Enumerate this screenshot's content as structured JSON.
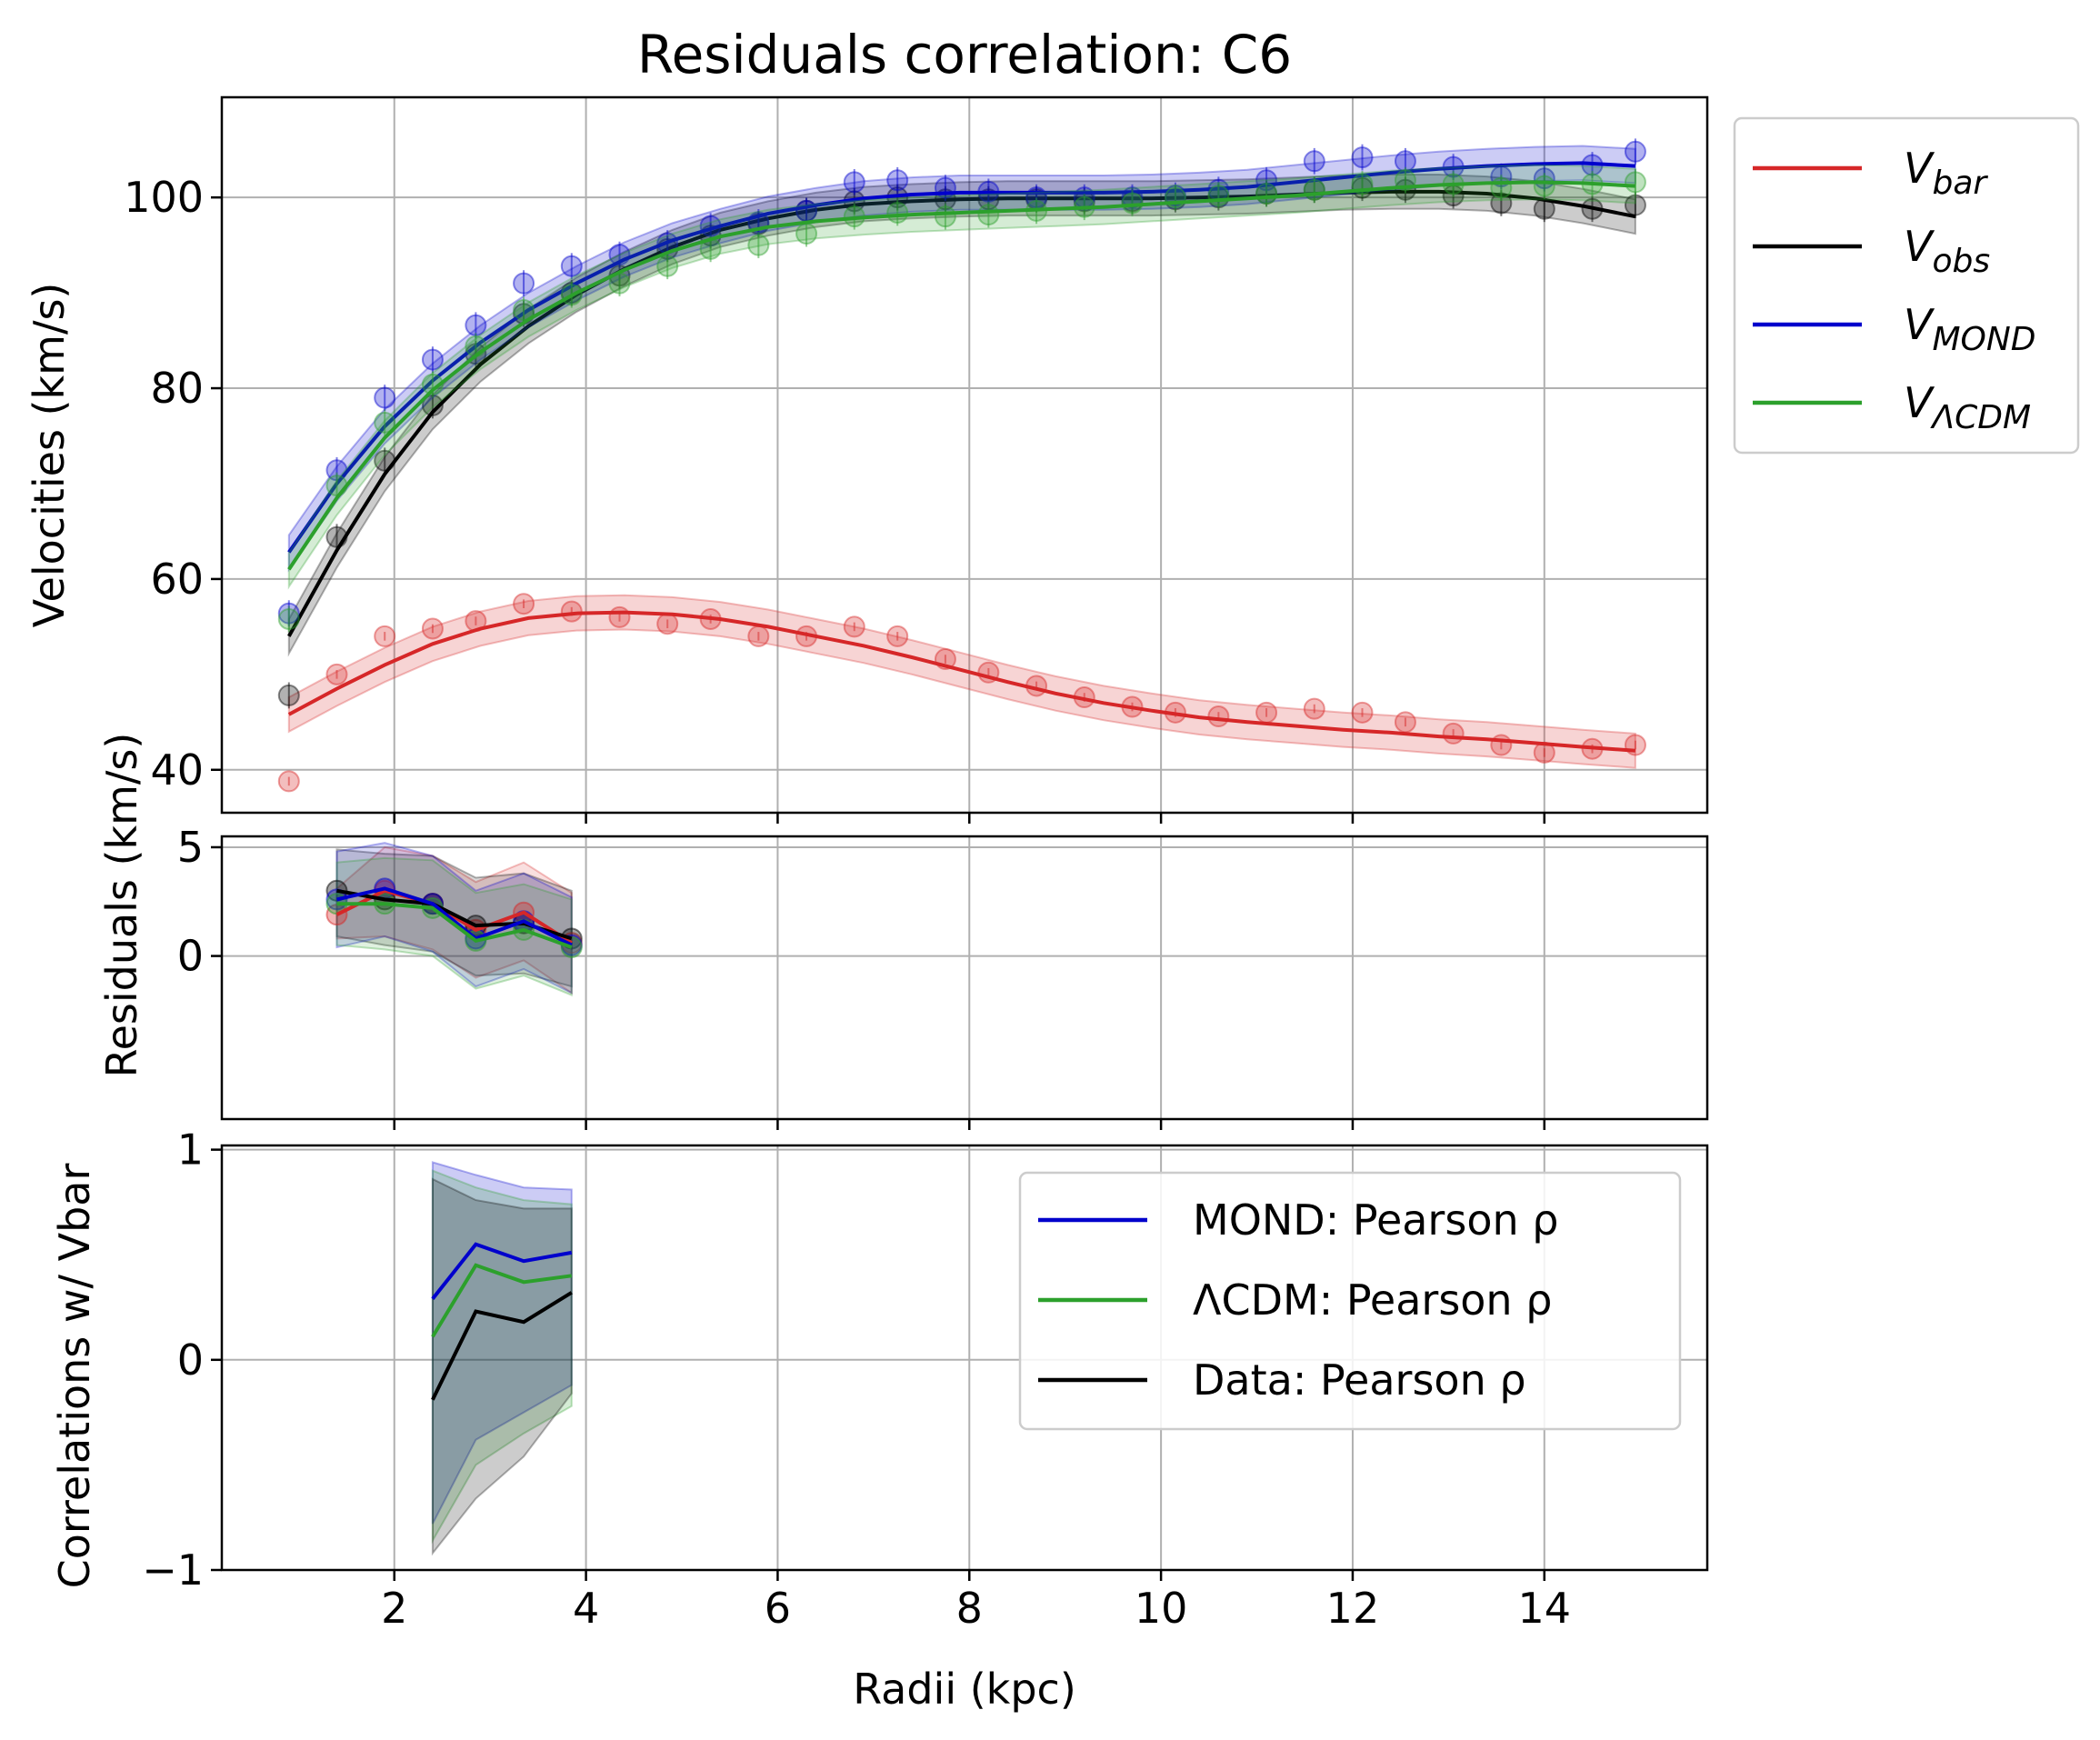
{
  "chart_data": [
    {
      "type": "line",
      "title": "Residuals correlation: C6",
      "ylabel": "Velocities (km/s)",
      "xlim": [
        0.2,
        15.7
      ],
      "ylim": [
        35.5,
        110.5
      ],
      "x_ticks": [
        2,
        4,
        6,
        8,
        10,
        12,
        14
      ],
      "y_ticks": [
        40,
        60,
        80,
        100
      ],
      "grid": true,
      "legend_position": "outside-right",
      "legend": [
        "V_bar",
        "V_obs",
        "V_MOND",
        "V_ΛCDM"
      ],
      "series": [
        {
          "name": "V_bar",
          "color": "#d62728",
          "points_x": [
            0.9,
            1.4,
            1.9,
            2.4,
            2.85,
            3.35,
            3.85,
            4.35,
            4.85,
            5.3,
            5.8,
            6.3,
            6.8,
            7.25,
            7.75,
            8.2,
            8.7,
            9.2,
            9.7,
            10.15,
            10.6,
            11.1,
            11.6,
            12.1,
            12.55,
            13.05,
            13.55,
            14.0,
            14.5,
            14.95
          ],
          "points_y": [
            38.8,
            50.0,
            54.0,
            54.8,
            55.6,
            57.4,
            56.6,
            56.0,
            55.3,
            55.8,
            54.0,
            54.0,
            55.0,
            54.0,
            51.6,
            50.2,
            48.8,
            47.6,
            46.6,
            46.0,
            45.6,
            46.0,
            46.4,
            46.0,
            45.0,
            43.8,
            42.6,
            41.8,
            42.2,
            42.6
          ],
          "curve_x": [
            0.9,
            1.4,
            1.9,
            2.4,
            2.9,
            3.4,
            3.9,
            4.4,
            4.9,
            5.4,
            5.9,
            6.4,
            6.9,
            7.4,
            7.9,
            8.4,
            8.9,
            9.4,
            9.9,
            10.4,
            10.9,
            11.4,
            11.9,
            12.4,
            12.9,
            13.4,
            13.9,
            14.4,
            14.95
          ],
          "curve_y": [
            45.8,
            48.5,
            51.0,
            53.2,
            54.8,
            55.9,
            56.4,
            56.5,
            56.3,
            55.8,
            55.0,
            54.0,
            53.0,
            51.8,
            50.5,
            49.2,
            48.0,
            47.0,
            46.2,
            45.5,
            45.0,
            44.6,
            44.2,
            43.9,
            43.5,
            43.2,
            42.8,
            42.4,
            42.0
          ],
          "band": 1.8
        },
        {
          "name": "V_obs",
          "color": "#000000",
          "points_x": [
            0.9,
            1.4,
            1.9,
            2.4,
            2.85,
            3.35,
            3.85,
            4.35,
            4.85,
            5.3,
            5.8,
            6.3,
            6.8,
            7.25,
            7.75,
            8.2,
            8.7,
            9.2,
            9.7,
            10.15,
            10.6,
            11.1,
            11.6,
            12.1,
            12.55,
            13.05,
            13.55,
            14.0,
            14.5,
            14.95
          ],
          "points_y": [
            47.8,
            64.4,
            72.4,
            78.2,
            83.6,
            87.8,
            90.0,
            91.8,
            94.6,
            96.0,
            97.2,
            98.6,
            99.6,
            100.0,
            99.8,
            99.8,
            99.8,
            99.6,
            99.6,
            99.8,
            100.0,
            100.4,
            100.8,
            101.0,
            100.8,
            100.2,
            99.4,
            98.8,
            98.8,
            99.2
          ],
          "curve_x": [
            0.9,
            1.4,
            1.9,
            2.4,
            2.9,
            3.4,
            3.9,
            4.4,
            4.9,
            5.4,
            5.9,
            6.4,
            6.9,
            7.4,
            7.9,
            8.4,
            8.9,
            9.4,
            9.9,
            10.4,
            10.9,
            11.4,
            11.9,
            12.4,
            12.9,
            13.4,
            13.9,
            14.4,
            14.95
          ],
          "curve_y": [
            54.0,
            63.0,
            71.0,
            77.5,
            82.5,
            86.5,
            89.8,
            92.5,
            94.8,
            96.6,
            97.8,
            98.7,
            99.3,
            99.6,
            99.8,
            99.9,
            99.9,
            99.9,
            99.9,
            100.0,
            100.1,
            100.3,
            100.5,
            100.6,
            100.6,
            100.4,
            99.9,
            99.1,
            98.0
          ],
          "band": 1.8
        },
        {
          "name": "V_MOND",
          "color": "#0000cc",
          "points_x": [
            0.9,
            1.4,
            1.9,
            2.4,
            2.85,
            3.35,
            3.85,
            4.35,
            4.85,
            5.3,
            5.8,
            6.3,
            6.8,
            7.25,
            7.75,
            8.2,
            8.7,
            9.2,
            9.7,
            10.15,
            10.6,
            11.1,
            11.6,
            12.1,
            12.55,
            13.05,
            13.55,
            14.0,
            14.5,
            14.95
          ],
          "points_y": [
            56.4,
            71.4,
            79.0,
            83.0,
            86.6,
            91.0,
            92.8,
            94.0,
            95.2,
            97.0,
            97.4,
            98.6,
            101.6,
            101.8,
            101.0,
            100.6,
            100.0,
            100.0,
            100.0,
            100.2,
            100.8,
            101.8,
            103.8,
            104.2,
            103.8,
            103.2,
            102.2,
            102.0,
            103.4,
            104.8
          ],
          "curve_x": [
            0.9,
            1.4,
            1.9,
            2.4,
            2.9,
            3.4,
            3.9,
            4.4,
            4.9,
            5.4,
            5.9,
            6.4,
            6.9,
            7.4,
            7.9,
            8.4,
            8.9,
            9.4,
            9.9,
            10.4,
            10.9,
            11.4,
            11.9,
            12.4,
            12.9,
            13.4,
            13.9,
            14.4,
            14.95
          ],
          "curve_y": [
            62.8,
            70.0,
            76.0,
            80.8,
            84.8,
            88.2,
            91.0,
            93.5,
            95.5,
            97.0,
            98.3,
            99.2,
            99.9,
            100.3,
            100.5,
            100.5,
            100.5,
            100.5,
            100.6,
            100.8,
            101.1,
            101.6,
            102.1,
            102.6,
            103.0,
            103.3,
            103.5,
            103.6,
            103.3
          ],
          "band": 1.8
        },
        {
          "name": "V_ΛCDM",
          "color": "#2ca02c",
          "points_x": [
            0.9,
            1.4,
            1.9,
            2.4,
            2.85,
            3.35,
            3.85,
            4.35,
            4.85,
            5.3,
            5.8,
            6.3,
            6.8,
            7.25,
            7.75,
            8.2,
            8.7,
            9.2,
            9.7,
            10.15,
            10.6,
            11.1,
            11.6,
            12.1,
            12.55,
            13.05,
            13.55,
            14.0,
            14.5,
            14.95
          ],
          "points_y": [
            55.8,
            69.8,
            76.4,
            80.4,
            84.4,
            88.2,
            89.8,
            91.0,
            92.8,
            94.6,
            95.0,
            96.2,
            98.0,
            98.4,
            98.0,
            98.2,
            98.6,
            99.0,
            99.4,
            100.0,
            100.2,
            100.4,
            100.8,
            101.4,
            101.8,
            101.4,
            101.0,
            101.2,
            101.4,
            101.6
          ],
          "curve_x": [
            0.9,
            1.4,
            1.9,
            2.4,
            2.9,
            3.4,
            3.9,
            4.4,
            4.9,
            5.4,
            5.9,
            6.4,
            6.9,
            7.4,
            7.9,
            8.4,
            8.9,
            9.4,
            9.9,
            10.4,
            10.9,
            11.4,
            11.9,
            12.4,
            12.9,
            13.4,
            13.9,
            14.4,
            14.95
          ],
          "curve_y": [
            61.0,
            68.5,
            74.8,
            79.8,
            83.8,
            87.2,
            90.0,
            92.4,
            94.4,
            95.9,
            96.9,
            97.5,
            97.9,
            98.2,
            98.4,
            98.6,
            98.8,
            99.0,
            99.3,
            99.6,
            99.9,
            100.2,
            100.6,
            101.0,
            101.3,
            101.5,
            101.6,
            101.5,
            101.2
          ],
          "band": 1.8
        }
      ]
    },
    {
      "type": "line",
      "ylabel": "Residuals (km/s)",
      "xlim": [
        0.2,
        15.7
      ],
      "ylim": [
        -7.5,
        5.5
      ],
      "y_ticks": [
        0,
        5
      ],
      "grid": true,
      "series": [
        {
          "name": "V_bar",
          "color": "#d62728",
          "x": [
            1.4,
            1.9,
            2.4,
            2.85,
            3.35,
            3.85
          ],
          "y": [
            1.9,
            3.0,
            2.4,
            1.2,
            2.0,
            0.6
          ],
          "band_low": [
            0.8,
            0.9,
            0.3,
            -1.0,
            -0.2,
            -1.7
          ],
          "band_high": [
            3.1,
            5.0,
            4.6,
            3.4,
            4.3,
            2.9
          ]
        },
        {
          "name": "V_obs",
          "color": "#000000",
          "x": [
            1.4,
            1.9,
            2.4,
            2.85,
            3.35,
            3.85
          ],
          "y": [
            3.0,
            2.6,
            2.4,
            1.4,
            1.5,
            0.8
          ],
          "band_low": [
            0.9,
            0.5,
            0.2,
            -0.9,
            -0.8,
            -1.4
          ],
          "band_high": [
            4.9,
            4.7,
            4.6,
            3.6,
            3.8,
            3.0
          ]
        },
        {
          "name": "V_MOND",
          "color": "#0000cc",
          "x": [
            1.4,
            1.9,
            2.4,
            2.85,
            3.35,
            3.85
          ],
          "y": [
            2.6,
            3.1,
            2.4,
            0.8,
            1.6,
            0.5
          ],
          "band_low": [
            0.4,
            0.9,
            0.2,
            -1.4,
            -0.6,
            -1.7
          ],
          "band_high": [
            4.8,
            5.2,
            4.6,
            3.0,
            3.8,
            2.7
          ]
        },
        {
          "name": "V_ΛCDM",
          "color": "#2ca02c",
          "x": [
            1.4,
            1.9,
            2.4,
            2.85,
            3.35,
            3.85
          ],
          "y": [
            2.4,
            2.4,
            2.2,
            0.7,
            1.2,
            0.4
          ],
          "band_low": [
            0.5,
            0.3,
            0.0,
            -1.5,
            -0.9,
            -1.8
          ],
          "band_high": [
            4.3,
            4.5,
            4.4,
            2.9,
            3.3,
            2.6
          ]
        }
      ]
    },
    {
      "type": "line",
      "ylabel": "Correlations w/ Vbar",
      "xlabel": "Radii (kpc)",
      "xlim": [
        0.2,
        15.7
      ],
      "ylim": [
        -1.0,
        1.02
      ],
      "y_ticks": [
        -1,
        0,
        1
      ],
      "x_ticks": [
        2,
        4,
        6,
        8,
        10,
        12,
        14
      ],
      "grid": true,
      "legend_position": "upper-right",
      "legend": [
        "MOND: Pearson ρ",
        "ΛCDM: Pearson ρ",
        "Data: Pearson ρ"
      ],
      "series": [
        {
          "name": "MOND: Pearson ρ",
          "color": "#0000cc",
          "x": [
            2.4,
            2.85,
            3.35,
            3.85
          ],
          "y": [
            0.29,
            0.55,
            0.47,
            0.51
          ],
          "band_low": [
            -0.78,
            -0.38,
            -0.25,
            -0.12
          ],
          "band_high": [
            0.94,
            0.88,
            0.82,
            0.81
          ]
        },
        {
          "name": "ΛCDM: Pearson ρ",
          "color": "#2ca02c",
          "x": [
            2.4,
            2.85,
            3.35,
            3.85
          ],
          "y": [
            0.11,
            0.45,
            0.37,
            0.4
          ],
          "band_low": [
            -0.86,
            -0.5,
            -0.35,
            -0.22
          ],
          "band_high": [
            0.9,
            0.82,
            0.76,
            0.74
          ]
        },
        {
          "name": "Data: Pearson ρ",
          "color": "#000000",
          "x": [
            2.4,
            2.85,
            3.35,
            3.85
          ],
          "y": [
            -0.19,
            0.23,
            0.18,
            0.32
          ],
          "band_low": [
            -0.92,
            -0.66,
            -0.46,
            -0.16
          ],
          "band_high": [
            0.86,
            0.76,
            0.72,
            0.72
          ]
        }
      ]
    }
  ]
}
